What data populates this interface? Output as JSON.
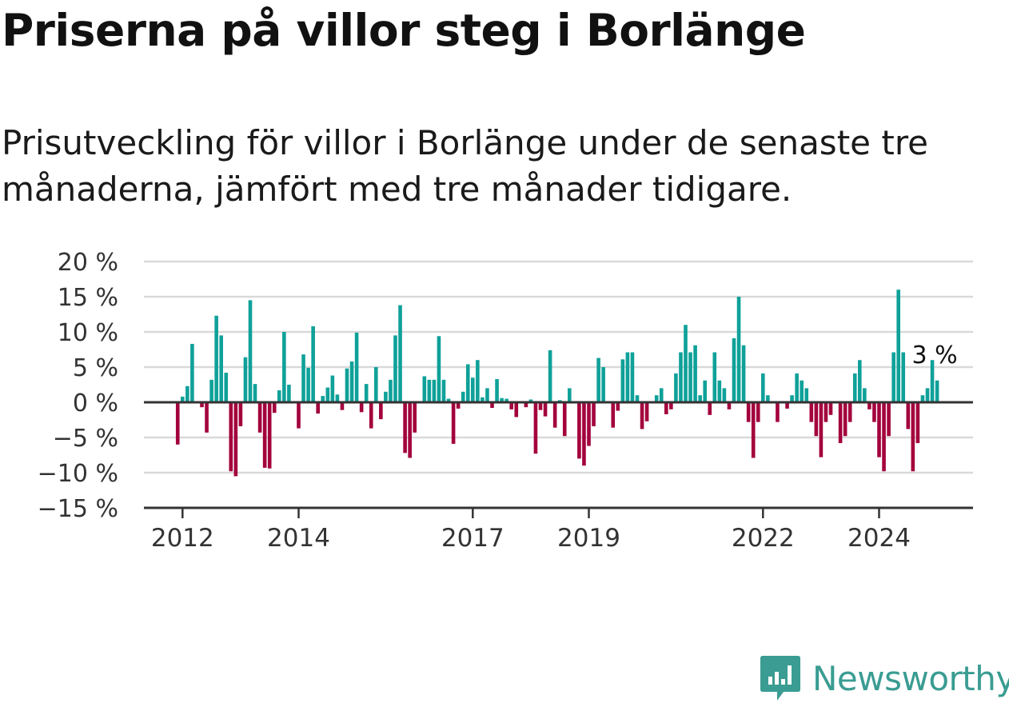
{
  "header": {
    "title": "Priserna på villor steg i Borlänge",
    "subtitle": "Prisutveckling för villor i Borlänge under de senaste tre månaderna, jämfört med tre månader tidigare."
  },
  "brand": {
    "name": "Newsworthy",
    "icon": "newsworthy-logo-icon",
    "color": "#3a9c92"
  },
  "chart_data": {
    "type": "bar",
    "y_unit": "%",
    "ylim": [
      -15,
      20
    ],
    "y_ticks": [
      20,
      15,
      10,
      5,
      0,
      -5,
      -10,
      -15
    ],
    "y_tick_labels": [
      "20 %",
      "15 %",
      "10 %",
      "5 %",
      "0 %",
      "−5 %",
      "−10 %",
      "−15 %"
    ],
    "x_tick_labels": [
      "2012",
      "2014",
      "2017",
      "2019",
      "2022",
      "2024"
    ],
    "x_tick_dates": [
      "2012-01",
      "2014-01",
      "2017-01",
      "2019-01",
      "2022-01",
      "2024-01"
    ],
    "grid": true,
    "colors": {
      "positive": "#0fa199",
      "negative": "#a3003c",
      "grid": "#d9d9d9",
      "axis": "#333333"
    },
    "annotation": {
      "label": "3 %",
      "date": "2025-01"
    },
    "series": [
      {
        "start": "2011-12",
        "frequency": "monthly",
        "values": [
          -6,
          0.8,
          2.3,
          8.3,
          0,
          -0.7,
          -4.3,
          3.2,
          12.3,
          9.5,
          4.2,
          -9.8,
          -10.5,
          -3.4,
          6.4,
          14.5,
          2.6,
          -4.3,
          -9.3,
          -9.4,
          -1.5,
          1.7,
          10,
          2.5,
          0,
          -3.7,
          6.8,
          4.9,
          10.8,
          -1.6,
          0.9,
          2.1,
          3.8,
          1.1,
          -1.1,
          4.8,
          5.8,
          9.9,
          -1.4,
          2.6,
          -3.7,
          5,
          -2.4,
          1.5,
          3.2,
          9.5,
          13.8,
          -7.2,
          -7.9,
          -4.3,
          0,
          3.7,
          3.2,
          3.2,
          9.4,
          3.2,
          0.5,
          -5.9,
          -0.9,
          1.5,
          5.4,
          3.5,
          6,
          0.7,
          2,
          -0.8,
          3.3,
          0.6,
          0.5,
          -1,
          -2.1,
          0,
          -0.7,
          0.4,
          -7.3,
          -1.1,
          -2,
          7.4,
          -3.6,
          0.3,
          -4.8,
          2,
          0,
          -8,
          -9,
          -6.2,
          -3.4,
          6.3,
          5,
          0,
          -3.6,
          -1.2,
          6.1,
          7.1,
          7.1,
          1,
          -3.8,
          -2.7,
          0,
          1,
          2,
          -1.7,
          -1,
          4.1,
          7.1,
          11,
          7.1,
          8.1,
          1,
          3.1,
          -1.8,
          7.1,
          3.1,
          2,
          -1,
          9.1,
          15,
          8.1,
          -2.8,
          -7.9,
          -2.8,
          4.1,
          1,
          0,
          -2.8,
          0,
          -0.9,
          1,
          4.1,
          3.1,
          2,
          -2.8,
          -4.8,
          -7.8,
          -2.8,
          -1.8,
          0,
          -5.8,
          -4.8,
          -2.8,
          4.1,
          6,
          2,
          -1,
          -2.8,
          -7.8,
          -9.8,
          -4.8,
          7.1,
          16,
          7.1,
          -3.8,
          -9.8,
          -5.8,
          1,
          2,
          6,
          3.1
        ]
      }
    ]
  }
}
